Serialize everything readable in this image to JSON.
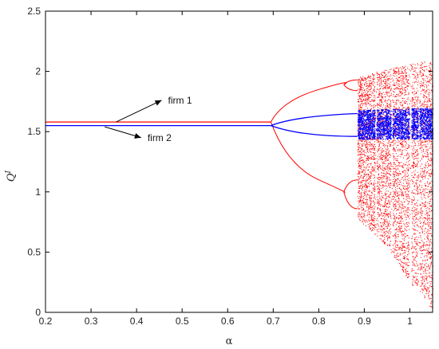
{
  "chart_data": {
    "type": "scatter",
    "title": "",
    "xlabel": "α",
    "ylabel": "Q^I",
    "xlim": [
      0.2,
      1.05
    ],
    "ylim": [
      0,
      2.5
    ],
    "grid": false,
    "xticks": [
      0.2,
      0.3,
      0.4,
      0.5,
      0.6,
      0.7,
      0.8,
      0.9,
      1
    ],
    "yticks": [
      0,
      0.5,
      1,
      1.5,
      2,
      2.5
    ],
    "colors": {
      "firm1": "#ff0000",
      "firm2": "#0000ff",
      "axis": "#000000"
    },
    "series": [
      {
        "key": "firm1",
        "label": "firm 1",
        "fixed_point": 1.58,
        "first_bifurcation_alpha": 0.695,
        "period2_branches": [
          {
            "alpha": 0.7,
            "values": [
              1.58,
              1.58
            ]
          },
          {
            "alpha": 0.75,
            "values": [
              1.79,
              1.25
            ]
          },
          {
            "alpha": 0.8,
            "values": [
              1.85,
              1.1
            ]
          },
          {
            "alpha": 0.855,
            "values": [
              1.89,
              1.0
            ]
          }
        ],
        "period4_branches": [
          {
            "alpha": 0.855,
            "values": [
              1.89,
              1.0
            ]
          },
          {
            "alpha": 0.88,
            "values": [
              1.92,
              1.86,
              0.88,
              1.02
            ]
          },
          {
            "alpha": 0.9,
            "values": [
              1.93,
              1.87,
              0.82,
              1.06
            ]
          }
        ],
        "chaos_band": {
          "alpha_start": 0.885,
          "alpha_end": 1.05,
          "upper_edge": [
            [
              0.885,
              1.95
            ],
            [
              0.95,
              2.02
            ],
            [
              1.0,
              2.06
            ],
            [
              1.05,
              2.1
            ]
          ],
          "lower_edge": [
            [
              0.885,
              0.78
            ],
            [
              0.95,
              0.55
            ],
            [
              1.0,
              0.25
            ],
            [
              1.05,
              0.02
            ]
          ]
        }
      },
      {
        "key": "firm2",
        "label": "firm 2",
        "fixed_point": 1.55,
        "first_bifurcation_alpha": 0.695,
        "period2_branches": [
          {
            "alpha": 0.7,
            "values": [
              1.55,
              1.55
            ]
          },
          {
            "alpha": 0.8,
            "values": [
              1.63,
              1.46
            ]
          },
          {
            "alpha": 0.885,
            "values": [
              1.65,
              1.46
            ]
          }
        ],
        "chaos_band": {
          "alpha_start": 0.885,
          "alpha_end": 1.05,
          "upper_edge": [
            [
              0.885,
              1.68
            ],
            [
              1.05,
              1.7
            ]
          ],
          "lower_edge": [
            [
              0.885,
              1.44
            ],
            [
              1.05,
              1.44
            ]
          ]
        }
      }
    ],
    "annotations": [
      {
        "text": "firm 1",
        "points_to": "firm1",
        "arrow_from": [
          0.355,
          1.58
        ],
        "arrow_to": [
          0.455,
          1.76
        ]
      },
      {
        "text": "firm 2",
        "points_to": "firm2",
        "arrow_from": [
          0.33,
          1.54
        ],
        "arrow_to": [
          0.41,
          1.45
        ]
      }
    ]
  }
}
